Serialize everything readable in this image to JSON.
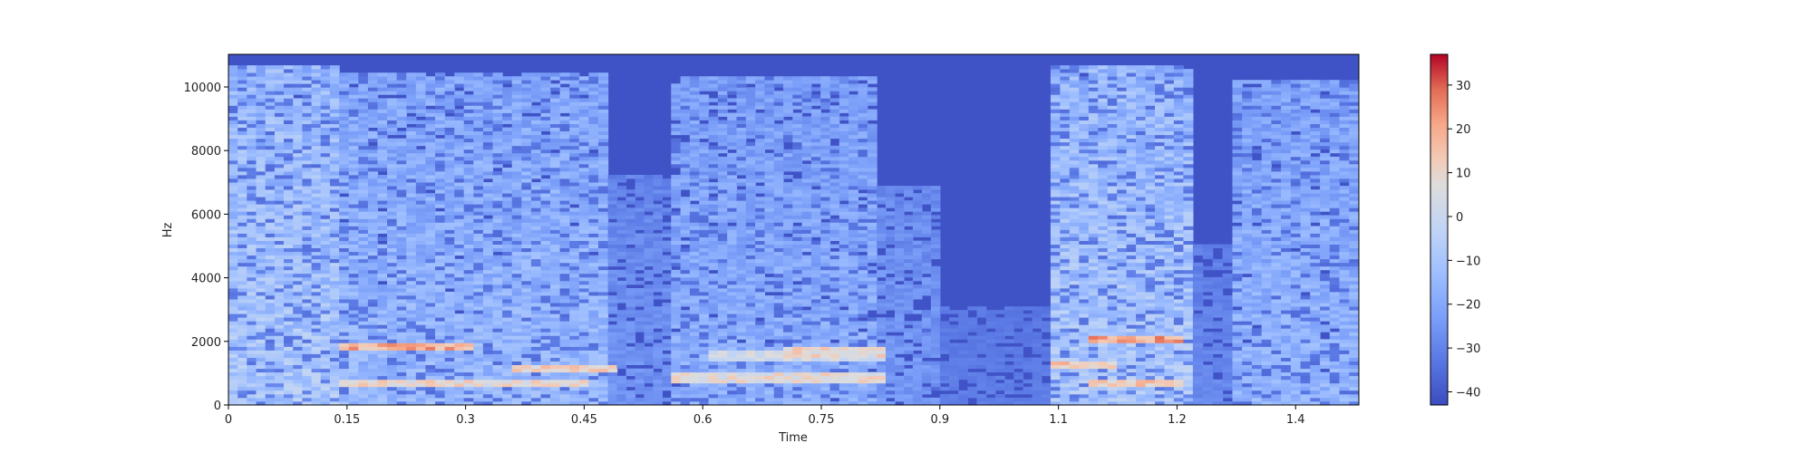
{
  "chart_data": {
    "type": "heatmap",
    "title": "",
    "xlabel": "Time",
    "ylabel": "Hz",
    "xlim": [
      0,
      1.43
    ],
    "ylim": [
      0,
      11025
    ],
    "x_ticks": [
      {
        "value": 0,
        "label": "0"
      },
      {
        "value": 0.15,
        "label": "0.15"
      },
      {
        "value": 0.3,
        "label": "0.3"
      },
      {
        "value": 0.45,
        "label": "0.45"
      },
      {
        "value": 0.6,
        "label": "0.6"
      },
      {
        "value": 0.75,
        "label": "0.75"
      },
      {
        "value": 0.9,
        "label": "0.9"
      },
      {
        "value": 1.05,
        "label": "1.1"
      },
      {
        "value": 1.2,
        "label": "1.2"
      },
      {
        "value": 1.35,
        "label": "1.4"
      }
    ],
    "y_ticks": [
      {
        "value": 0,
        "label": "0"
      },
      {
        "value": 2000,
        "label": "2000"
      },
      {
        "value": 4000,
        "label": "4000"
      },
      {
        "value": 6000,
        "label": "6000"
      },
      {
        "value": 8000,
        "label": "8000"
      },
      {
        "value": 10000,
        "label": "10000"
      }
    ],
    "colorbar": {
      "colormap": "coolwarm",
      "range": [
        -43,
        37
      ],
      "ticks": [
        {
          "value": -40,
          "label": "−40"
        },
        {
          "value": -30,
          "label": "−30"
        },
        {
          "value": -20,
          "label": "−20"
        },
        {
          "value": -10,
          "label": "−10"
        },
        {
          "value": 0,
          "label": "0"
        },
        {
          "value": 10,
          "label": "10"
        },
        {
          "value": 20,
          "label": "20"
        },
        {
          "value": 30,
          "label": "30"
        }
      ]
    },
    "segments": [
      {
        "t": [
          0.0,
          0.14
        ],
        "level": 0.4,
        "top_hz": 10600
      },
      {
        "t": [
          0.14,
          0.48
        ],
        "level": 0.32,
        "top_hz": 10400
      },
      {
        "t": [
          0.48,
          0.56
        ],
        "level": 0.16,
        "top_hz": 7200
      },
      {
        "t": [
          0.56,
          0.82
        ],
        "level": 0.28,
        "top_hz": 10300
      },
      {
        "t": [
          0.82,
          0.9
        ],
        "level": 0.18,
        "top_hz": 6800
      },
      {
        "t": [
          0.9,
          1.04
        ],
        "level": 0.08,
        "top_hz": 3000
      },
      {
        "t": [
          1.04,
          1.22
        ],
        "level": 0.4,
        "top_hz": 10600
      },
      {
        "t": [
          1.22,
          1.27
        ],
        "level": 0.12,
        "top_hz": 5000
      },
      {
        "t": [
          1.27,
          1.43
        ],
        "level": 0.3,
        "top_hz": 10200
      }
    ],
    "formants": [
      {
        "t": [
          0.13,
          0.3
        ],
        "hz": 1800,
        "level": 0.85
      },
      {
        "t": [
          0.13,
          0.45
        ],
        "hz": 600,
        "level": 0.7
      },
      {
        "t": [
          0.35,
          0.48
        ],
        "hz": 1100,
        "level": 0.72
      },
      {
        "t": [
          0.55,
          0.82
        ],
        "hz": 800,
        "level": 0.68
      },
      {
        "t": [
          0.6,
          0.82
        ],
        "hz": 1500,
        "level": 0.62
      },
      {
        "t": [
          0.7,
          0.82
        ],
        "hz": 1600,
        "level": 0.7
      },
      {
        "t": [
          1.04,
          1.12
        ],
        "hz": 1200,
        "level": 0.78
      },
      {
        "t": [
          1.08,
          1.2
        ],
        "hz": 2000,
        "level": 0.85
      },
      {
        "t": [
          1.08,
          1.2
        ],
        "hz": 600,
        "level": 0.75
      }
    ]
  }
}
